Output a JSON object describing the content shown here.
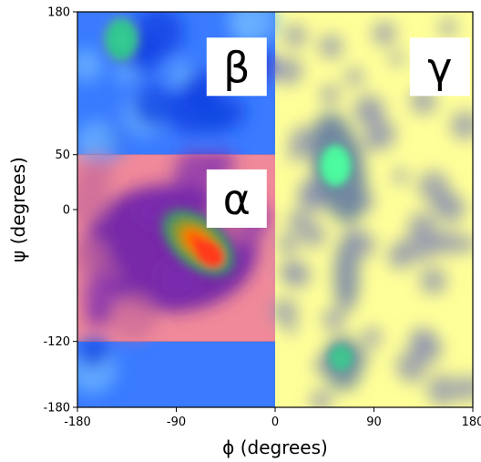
{
  "chart_data": {
    "type": "heatmap",
    "title": "",
    "xlabel": "ϕ (degrees)",
    "ylabel": "ψ (degrees)",
    "xlim": [
      -180,
      180
    ],
    "ylim": [
      -180,
      180
    ],
    "x_ticks": [
      -180,
      -90,
      0,
      90,
      180
    ],
    "y_ticks": [
      180,
      50,
      0,
      -120,
      -180
    ],
    "grid": false,
    "regions": [
      {
        "label": "β",
        "phi_range": [
          -180,
          0
        ],
        "psi_range": [
          50,
          180
        ],
        "color": "#3a7bff"
      },
      {
        "label": "α",
        "phi_range": [
          -180,
          0
        ],
        "psi_range": [
          -120,
          50
        ],
        "color": "#f08a9a"
      },
      {
        "label": "",
        "phi_range": [
          -180,
          0
        ],
        "psi_range": [
          -180,
          -120
        ],
        "color": "#3a7bff"
      },
      {
        "label": "γ",
        "phi_range": [
          0,
          180
        ],
        "psi_range": [
          -180,
          180
        ],
        "color": "#ffff99"
      }
    ],
    "density_peaks": [
      {
        "phi": -60,
        "psi": -40,
        "level": "high",
        "color": "#ff3b1f"
      },
      {
        "phi": -140,
        "psi": 155,
        "level": "medium",
        "color": "#2fc48f"
      },
      {
        "phi": 55,
        "psi": 40,
        "level": "medium",
        "color": "#4dffa0"
      },
      {
        "phi": 60,
        "psi": -135,
        "level": "low",
        "color": "#3fbf8f"
      }
    ]
  }
}
